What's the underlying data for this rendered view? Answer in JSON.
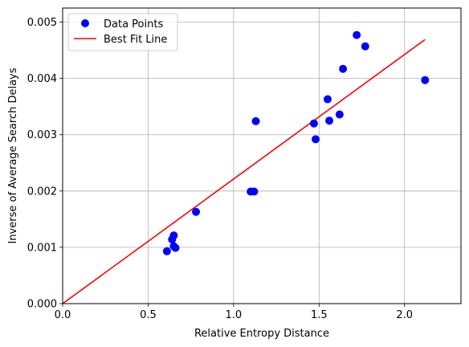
{
  "chart_data": {
    "type": "scatter",
    "xlabel": "Relative Entropy Distance",
    "ylabel": "Inverse of Average Search Delays",
    "xlim": [
      0,
      2.33
    ],
    "ylim": [
      0,
      0.00525
    ],
    "xticks": [
      0.0,
      0.5,
      1.0,
      1.5,
      2.0
    ],
    "xtick_labels": [
      "0.0",
      "0.5",
      "1.0",
      "1.5",
      "2.0"
    ],
    "yticks": [
      0.0,
      0.001,
      0.002,
      0.003,
      0.004,
      0.005
    ],
    "ytick_labels": [
      "0.000",
      "0.001",
      "0.002",
      "0.003",
      "0.004",
      "0.005"
    ],
    "grid": true,
    "legend_position": "top-left",
    "series": [
      {
        "name": "Data Points",
        "kind": "scatter",
        "color": "#0000ff",
        "points": [
          [
            0.61,
            0.00093
          ],
          [
            0.64,
            0.00114
          ],
          [
            0.65,
            0.00121
          ],
          [
            0.65,
            0.00102
          ],
          [
            0.66,
            0.00099
          ],
          [
            0.78,
            0.00163
          ],
          [
            1.1,
            0.00199
          ],
          [
            1.12,
            0.00199
          ],
          [
            1.13,
            0.00324
          ],
          [
            1.47,
            0.0032
          ],
          [
            1.48,
            0.00292
          ],
          [
            1.55,
            0.00363
          ],
          [
            1.56,
            0.00325
          ],
          [
            1.62,
            0.00336
          ],
          [
            1.64,
            0.00417
          ],
          [
            1.72,
            0.00477
          ],
          [
            1.77,
            0.00457
          ],
          [
            2.12,
            0.00397
          ]
        ]
      },
      {
        "name": "Best Fit Line",
        "kind": "line",
        "color": "#ff0000",
        "points": [
          [
            0.0,
            0.0
          ],
          [
            2.12,
            0.00469
          ]
        ]
      }
    ]
  }
}
